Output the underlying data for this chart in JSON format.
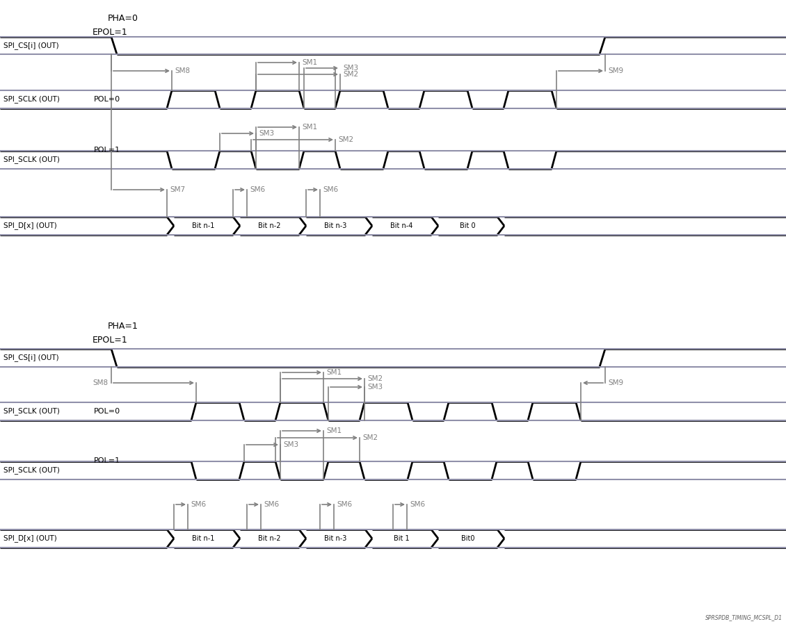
{
  "bg_color": "#ffffff",
  "signal_color": "#000000",
  "rail_color": "#9090aa",
  "annotation_color": "#808080",
  "fig_width": 11.3,
  "fig_height": 8.98,
  "lw_sig": 2.0,
  "lw_rail": 1.5,
  "lw_ann": 1.2,
  "s1": {
    "pha_label": "PHA=0",
    "epol_label": "EPOL=1",
    "cs_label": "SPI_CS[i] (OUT)",
    "clk_pol0_label": "SPI_SCLK (OUT)",
    "pol0_text": "POL=0",
    "clk_pol1_label": "SPI_SCLK (OUT)",
    "pol1_text": "POL=1",
    "data_label": "SPI_D[x] (OUT)",
    "bits": [
      "Bit n-1",
      "Bit n-2",
      "Bit n-3",
      "Bit n-4",
      "Bit 0"
    ]
  },
  "s2": {
    "pha_label": "PHA=1",
    "epol_label": "EPOL=1",
    "cs_label": "SPI_CS[i] (OUT)",
    "clk_pol0_label": "SPI_SCLK (OUT)",
    "pol0_text": "POL=0",
    "clk_pol1_label": "SPI_SCLK (OUT)",
    "pol1_text": "POL=1",
    "data_label": "SPI_D[x] (OUT)",
    "bits": [
      "Bit n-1",
      "Bit n-2",
      "Bit n-3",
      "Bit 1",
      "Bit0"
    ]
  },
  "watermark": "SPRSPDB_TIMING_MCSPL_D1"
}
